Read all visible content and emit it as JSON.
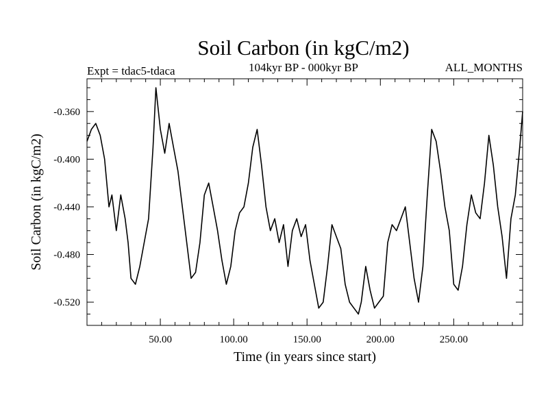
{
  "chart_data": {
    "type": "line",
    "title": "Soil Carbon (in kgC/m2)",
    "subtitle": "104kyr BP - 000kyr BP",
    "left_annotation": "Expt = tdac5-tdaca",
    "right_annotation": "ALL_MONTHS",
    "xlabel": "Time (in years since start)",
    "ylabel": "Soil Carbon (in kgC/m2)",
    "xlim": [
      0,
      297
    ],
    "ylim": [
      -0.5395,
      -0.3325
    ],
    "x_ticks": [
      50,
      100,
      150,
      200,
      250
    ],
    "x_tick_labels": [
      "50.00",
      "100.00",
      "150.00",
      "200.00",
      "250.00"
    ],
    "y_ticks": [
      -0.36,
      -0.4,
      -0.44,
      -0.48,
      -0.52
    ],
    "y_tick_labels": [
      "-0.360",
      "-0.400",
      "-0.440",
      "-0.480",
      "-0.520"
    ],
    "series": [
      {
        "name": "Soil Carbon",
        "x": [
          0,
          3,
          6,
          9,
          12,
          15,
          17,
          20,
          23,
          26,
          28,
          30,
          33,
          36,
          39,
          42,
          45,
          47,
          50,
          53,
          56,
          59,
          62,
          65,
          68,
          71,
          74,
          77,
          80,
          83,
          86,
          89,
          92,
          95,
          98,
          101,
          104,
          107,
          110,
          113,
          116,
          119,
          122,
          125,
          128,
          131,
          134,
          137,
          140,
          143,
          146,
          149,
          152,
          155,
          158,
          161,
          164,
          167,
          170,
          173,
          176,
          179,
          182,
          185,
          187,
          190,
          193,
          196,
          199,
          202,
          205,
          208,
          211,
          214,
          217,
          220,
          223,
          226,
          229,
          232,
          235,
          238,
          241,
          244,
          247,
          250,
          253,
          256,
          259,
          262,
          265,
          268,
          271,
          274,
          277,
          280,
          283,
          286,
          289,
          292,
          295,
          297
        ],
        "y": [
          -0.385,
          -0.375,
          -0.37,
          -0.38,
          -0.4,
          -0.44,
          -0.43,
          -0.46,
          -0.43,
          -0.45,
          -0.47,
          -0.5,
          -0.505,
          -0.49,
          -0.47,
          -0.45,
          -0.39,
          -0.34,
          -0.375,
          -0.395,
          -0.37,
          -0.39,
          -0.41,
          -0.44,
          -0.47,
          -0.5,
          -0.495,
          -0.47,
          -0.43,
          -0.42,
          -0.44,
          -0.46,
          -0.485,
          -0.505,
          -0.49,
          -0.46,
          -0.445,
          -0.44,
          -0.42,
          -0.39,
          -0.375,
          -0.405,
          -0.44,
          -0.46,
          -0.45,
          -0.47,
          -0.455,
          -0.49,
          -0.46,
          -0.45,
          -0.465,
          -0.455,
          -0.485,
          -0.505,
          -0.525,
          -0.52,
          -0.49,
          -0.455,
          -0.465,
          -0.475,
          -0.505,
          -0.52,
          -0.525,
          -0.53,
          -0.52,
          -0.49,
          -0.51,
          -0.525,
          -0.52,
          -0.515,
          -0.47,
          -0.455,
          -0.46,
          -0.45,
          -0.44,
          -0.47,
          -0.5,
          -0.52,
          -0.49,
          -0.43,
          -0.375,
          -0.385,
          -0.41,
          -0.44,
          -0.46,
          -0.505,
          -0.51,
          -0.49,
          -0.455,
          -0.43,
          -0.445,
          -0.45,
          -0.42,
          -0.38,
          -0.405,
          -0.44,
          -0.465,
          -0.5,
          -0.45,
          -0.43,
          -0.39,
          -0.36
        ]
      }
    ]
  }
}
